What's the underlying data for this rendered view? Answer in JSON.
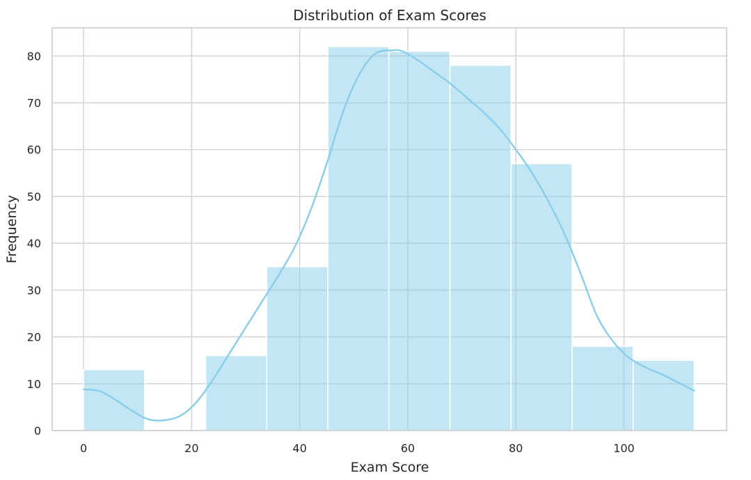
{
  "chart_data": {
    "type": "bar",
    "subtype": "histogram",
    "title": "Distribution of Exam Scores",
    "xlabel": "Exam Score",
    "ylabel": "Frequency",
    "bin_edges": [
      0,
      11.3,
      22.6,
      33.9,
      45.2,
      56.5,
      67.8,
      79.1,
      90.4,
      101.7,
      113
    ],
    "values": [
      13,
      0,
      16,
      35,
      82,
      81,
      78,
      57,
      18,
      15
    ],
    "xlim": [
      -5.8,
      119
    ],
    "ylim": [
      0,
      86
    ],
    "xticks": [
      0,
      20,
      40,
      60,
      80,
      100
    ],
    "yticks": [
      0,
      10,
      20,
      30,
      40,
      50,
      60,
      70,
      80
    ],
    "kde": {
      "x": [
        0,
        3,
        6,
        9,
        12,
        15,
        18,
        21,
        24,
        27,
        30,
        33,
        36,
        39,
        42,
        45,
        48,
        51,
        54,
        57,
        59,
        62,
        65,
        68,
        71,
        74,
        77,
        80,
        83,
        86,
        89,
        92,
        95,
        98,
        101,
        104,
        107,
        110,
        113
      ],
      "y": [
        8.8,
        8.4,
        6.5,
        4.2,
        2.4,
        2.2,
        3.2,
        6.2,
        11,
        16.5,
        22,
        27.5,
        33,
        39,
        47,
        57,
        68,
        76,
        80.5,
        81.2,
        81,
        79,
        76.5,
        74,
        71,
        68,
        64.5,
        60,
        55,
        49,
        42,
        33.5,
        24.5,
        19,
        15.5,
        13.5,
        12,
        10.3,
        8.5
      ]
    },
    "color": "#87ceeb",
    "grid": true,
    "legend": "none"
  }
}
